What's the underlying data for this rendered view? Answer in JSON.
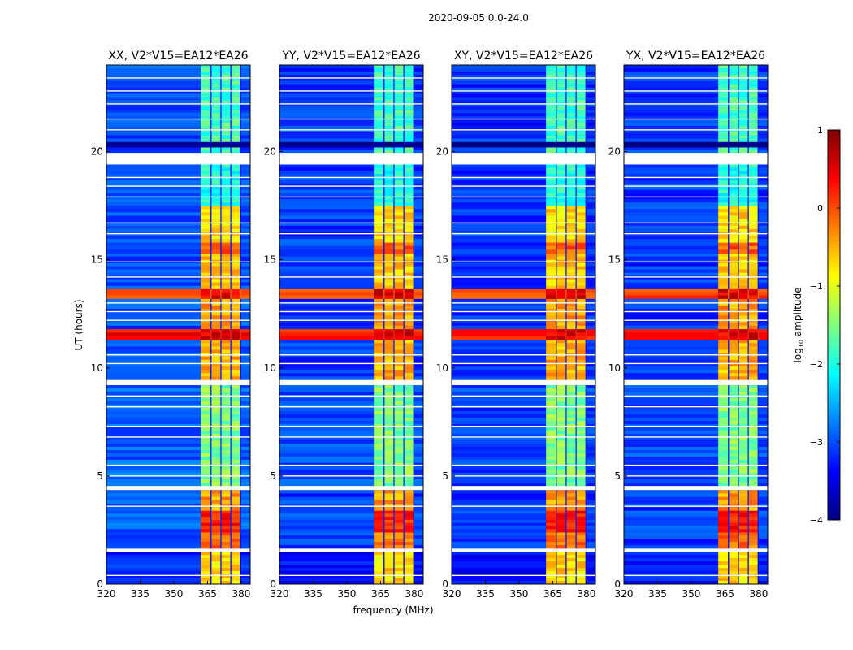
{
  "chart_data": {
    "type": "heatmap",
    "title": "2020-09-05 0.0-24.0",
    "xlabel": "frequency (MHz)",
    "ylabel": "UT (hours)",
    "xlim": [
      320,
      384
    ],
    "ylim": [
      0,
      24
    ],
    "xticks": [
      "320",
      "335",
      "350",
      "365",
      "380"
    ],
    "xtick_values": [
      320,
      335,
      350,
      365,
      380
    ],
    "yticks": [
      "0",
      "5",
      "10",
      "15",
      "20"
    ],
    "ytick_values": [
      0,
      5,
      10,
      15,
      20
    ],
    "colorbar": {
      "label": "log10 amplitude",
      "label_main": "log",
      "label_sub": "10",
      "label_rest": " amplitude",
      "range": [
        -4,
        1
      ],
      "ticks": [
        "−4",
        "−3",
        "−2",
        "−1",
        "0",
        "1"
      ],
      "tick_values": [
        -4,
        -3,
        -2,
        -1,
        0,
        1
      ],
      "colormap": "jet"
    },
    "band": {
      "start": 362,
      "end": 380,
      "gaps": [
        366.8,
        371.2,
        375.6
      ]
    },
    "segments": [
      {
        "t0": 0,
        "t1": 1.5,
        "bg": -3.2,
        "band": -0.7
      },
      {
        "t0": 1.5,
        "t1": 1.65,
        "flag": true
      },
      {
        "t0": 1.65,
        "t1": 2.4,
        "bg": -3.0,
        "band": -0.2
      },
      {
        "t0": 2.4,
        "t1": 3.4,
        "bg": -2.9,
        "band": 0.25
      },
      {
        "t0": 3.4,
        "t1": 4.35,
        "bg": -3.0,
        "band": -0.4
      },
      {
        "t0": 4.35,
        "t1": 4.55,
        "flag": true
      },
      {
        "t0": 4.55,
        "t1": 9.2,
        "bg": -2.9,
        "band": -1.5
      },
      {
        "t0": 9.2,
        "t1": 9.45,
        "flag": true
      },
      {
        "t0": 9.45,
        "t1": 11.3,
        "bg": -3.0,
        "band": -0.5
      },
      {
        "t0": 11.3,
        "t1": 11.8,
        "bg": 0.4,
        "band": 0.5
      },
      {
        "t0": 11.8,
        "t1": 13.2,
        "bg": -3.0,
        "band": -0.4
      },
      {
        "t0": 13.2,
        "t1": 13.65,
        "bg": 0.1,
        "band": 0.5
      },
      {
        "t0": 13.65,
        "t1": 15.3,
        "bg": -3.0,
        "band": -0.6
      },
      {
        "t0": 15.3,
        "t1": 15.8,
        "bg": -3.0,
        "band": -0.1
      },
      {
        "t0": 15.8,
        "t1": 17.5,
        "bg": -3.0,
        "band": -0.7
      },
      {
        "t0": 17.5,
        "t1": 19.4,
        "bg": -3.0,
        "band": -2.0
      },
      {
        "t0": 19.4,
        "t1": 19.95,
        "flag": true
      },
      {
        "t0": 19.95,
        "t1": 20.2,
        "bg": -3.0,
        "band": -1.8
      },
      {
        "t0": 20.2,
        "t1": 20.45,
        "bg": -4.0,
        "band": -4.0
      },
      {
        "t0": 20.45,
        "t1": 24,
        "bg": -3.0,
        "band": -1.8
      }
    ],
    "flag_lines": [
      0.4,
      3.6,
      5.0,
      5.5,
      6.8,
      7.3,
      8.2,
      8.7,
      10.2,
      10.6,
      12.2,
      12.6,
      13.0,
      14.2,
      14.9,
      16.2,
      16.7,
      17.9,
      18.4,
      18.8,
      21.0,
      21.5,
      22.2,
      22.8,
      23.4
    ],
    "panels": [
      {
        "title": "XX, V2*V15=EA12*EA26",
        "bg_offset": 0
      },
      {
        "title": "YY, V2*V15=EA12*EA26",
        "bg_offset": -0.1
      },
      {
        "title": "XY, V2*V15=EA12*EA26",
        "bg_offset": -0.15
      },
      {
        "title": "YX, V2*V15=EA12*EA26",
        "bg_offset": -0.1
      }
    ]
  }
}
